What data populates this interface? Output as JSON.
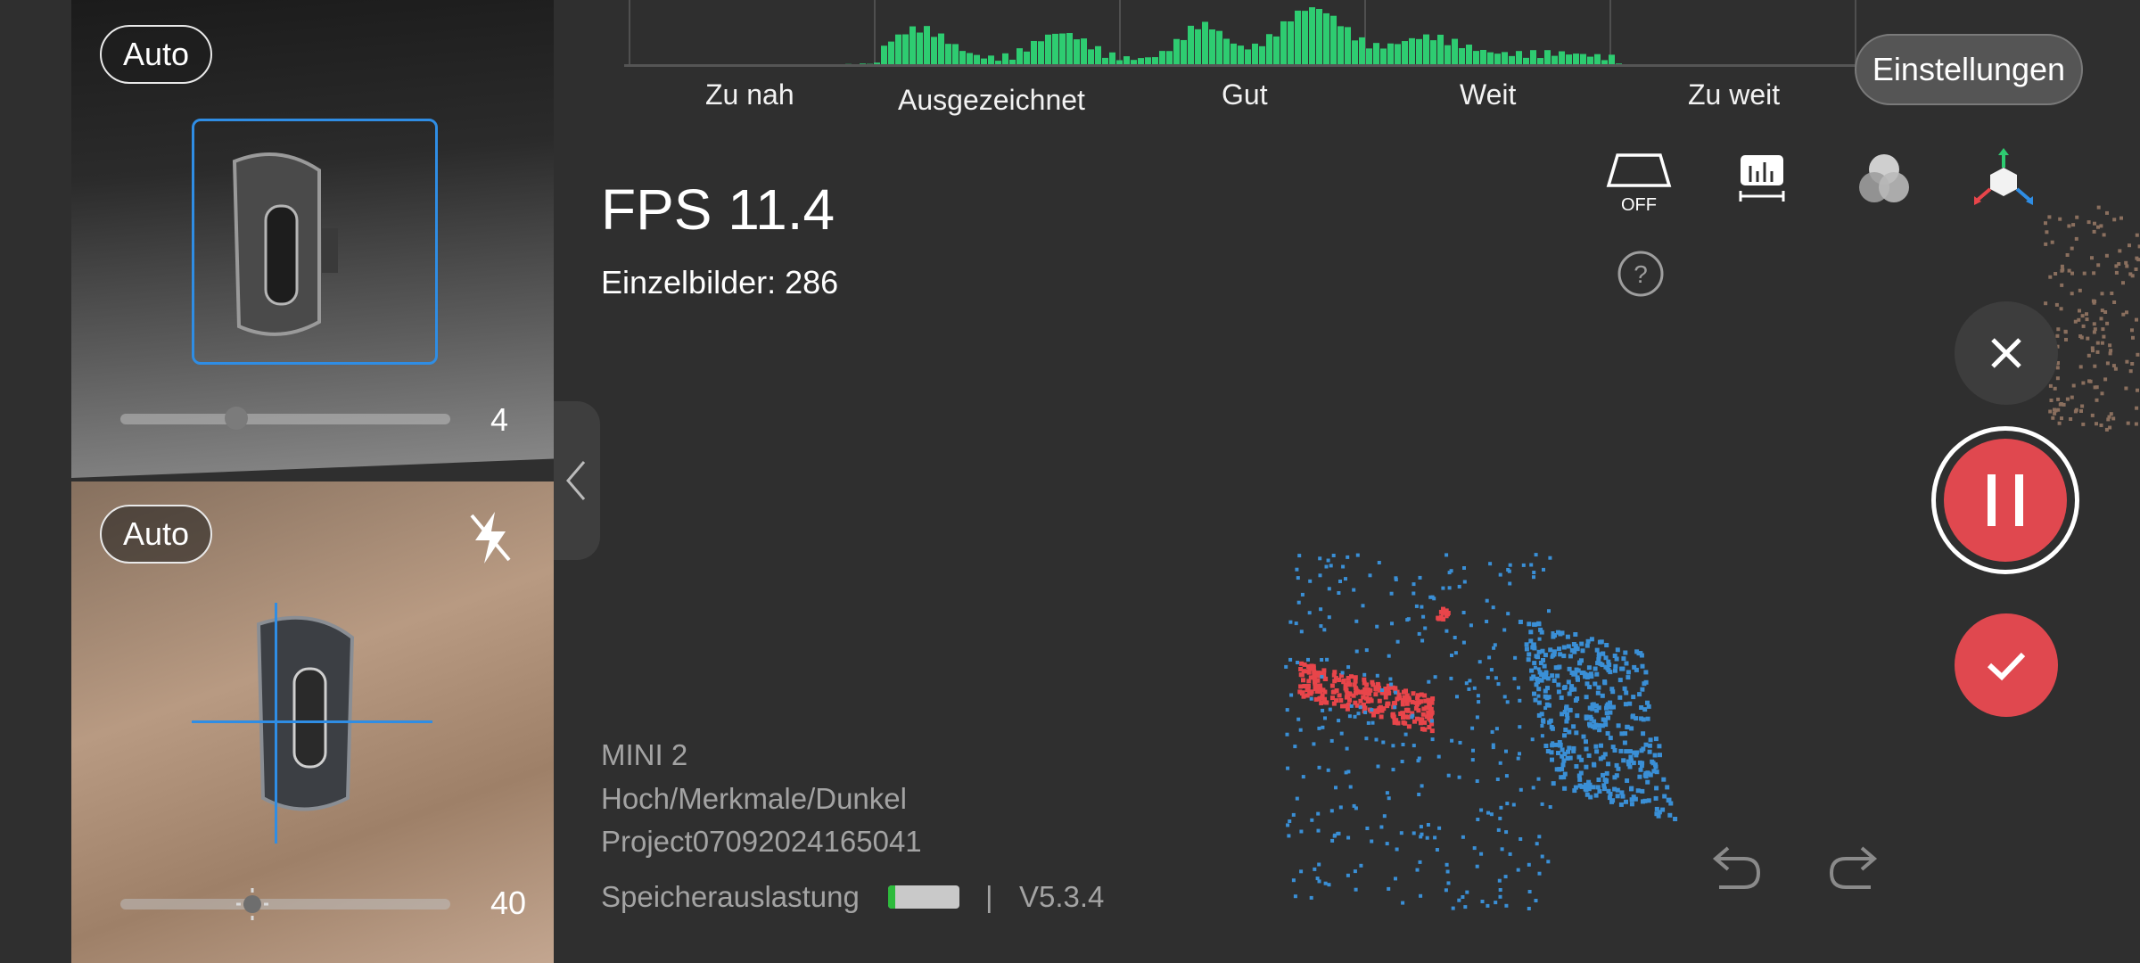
{
  "camera_top": {
    "mode": "Auto",
    "slider_value": "4",
    "slider_level": 0.35
  },
  "camera_bottom": {
    "mode": "Auto",
    "slider_value": "40",
    "slider_level": 0.4,
    "flash_icon": "flash-off-icon"
  },
  "histogram": {
    "labels": [
      "Zu nah",
      "Ausgezeichnet",
      "Gut",
      "Weit",
      "Zu weit"
    ],
    "bar_color": "#2ecc71"
  },
  "header": {
    "settings_label": "Einstellungen"
  },
  "stats": {
    "fps": "FPS 11.4",
    "frames_label": "Einzelbilder:",
    "frames_value": "286"
  },
  "toolbar": {
    "icons": [
      "trapezoid-icon",
      "ruler-icon",
      "color-mix-icon",
      "axes-cube-icon"
    ],
    "trapezoid_status": "OFF",
    "help_icon": "question-icon"
  },
  "actions": {
    "close_icon": "close-icon",
    "pause_icon": "pause-icon",
    "confirm_icon": "check-icon"
  },
  "info": {
    "device": "MINI 2",
    "mode": "Hoch/Merkmale/Dunkel",
    "project": "Project07092024165041",
    "storage_label": "Speicherauslastung",
    "storage_level": 0.1,
    "separator": "|",
    "version": "V5.3.4"
  },
  "colors": {
    "accent_red": "#e0484f",
    "focus_blue": "#2f8de4",
    "point_blue": "#3a8fd6",
    "point_red": "#e8454a"
  }
}
